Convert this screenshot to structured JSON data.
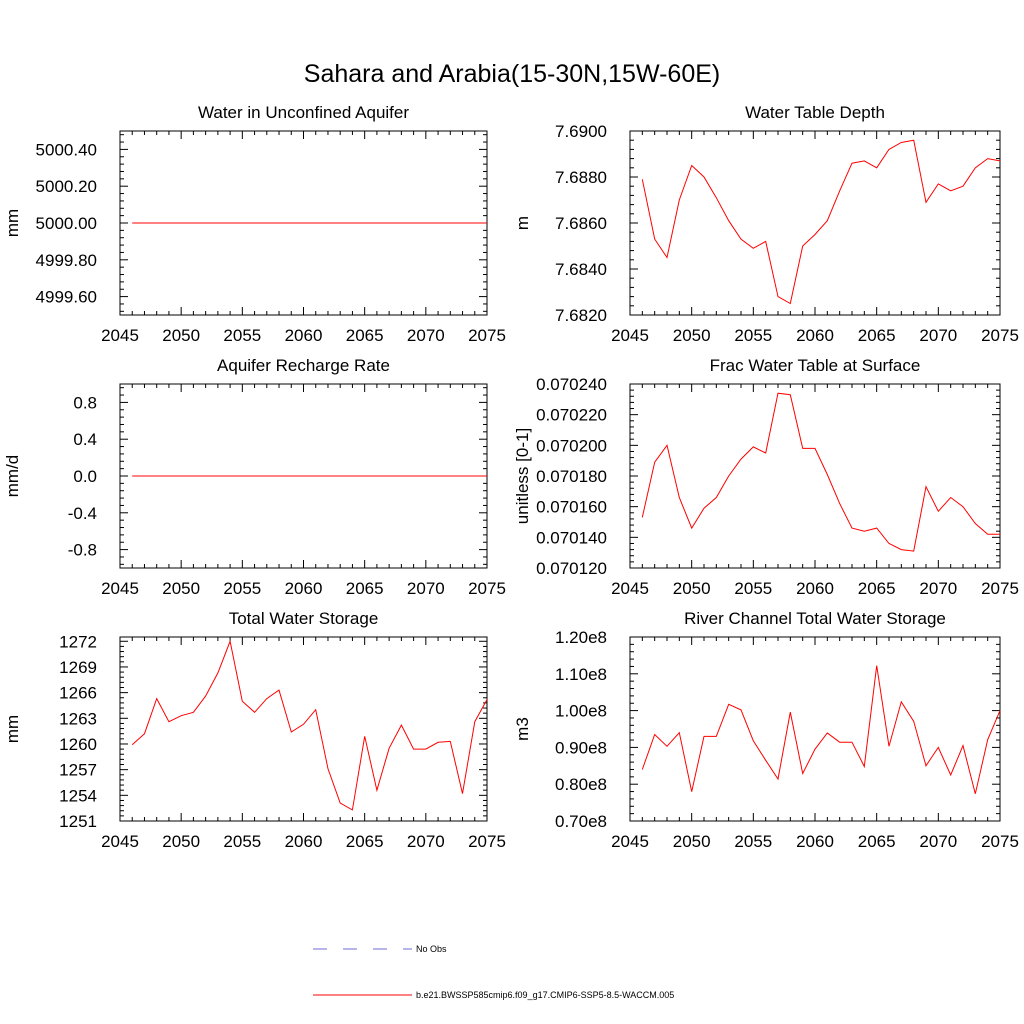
{
  "main_title": "Sahara and Arabia(15-30N,15W-60E)",
  "colors": {
    "series": "#ff0000",
    "obs": "#6b6bd6",
    "axis": "#000000"
  },
  "legend": {
    "obs_label": "No Obs",
    "model_label": "b.e21.BWSSP585cmip6.f09_g17.CMIP6-SSP5-8.5-WACCM.005"
  },
  "chart_data": [
    {
      "type": "line",
      "title": "Water in Unconfined Aquifer",
      "ylabel": "mm",
      "xlim": [
        2045,
        2075
      ],
      "ylim": [
        4999.5,
        5000.5
      ],
      "xticks": [
        2045,
        2050,
        2055,
        2060,
        2065,
        2070,
        2075
      ],
      "yticks": [
        4999.6,
        4999.8,
        5000.0,
        5000.2,
        5000.4
      ],
      "ytick_labels": [
        "4999.60",
        "4999.80",
        "5000.00",
        "5000.20",
        "5000.40"
      ],
      "x": [
        2046,
        2075
      ],
      "y": [
        5000.0,
        5000.0
      ]
    },
    {
      "type": "line",
      "title": "Water Table Depth",
      "ylabel": "m",
      "xlim": [
        2045,
        2075
      ],
      "ylim": [
        7.682,
        7.69
      ],
      "xticks": [
        2045,
        2050,
        2055,
        2060,
        2065,
        2070,
        2075
      ],
      "yticks": [
        7.682,
        7.684,
        7.686,
        7.688,
        7.69
      ],
      "ytick_labels": [
        "7.6820",
        "7.6840",
        "7.6860",
        "7.6880",
        "7.6900"
      ],
      "x": [
        2046,
        2047,
        2048,
        2049,
        2050,
        2051,
        2052,
        2053,
        2054,
        2055,
        2056,
        2057,
        2058,
        2059,
        2060,
        2061,
        2062,
        2063,
        2064,
        2065,
        2066,
        2067,
        2068,
        2069,
        2070,
        2071,
        2072,
        2073,
        2074,
        2075
      ],
      "y": [
        7.6879,
        7.6853,
        7.6845,
        7.687,
        7.6885,
        7.688,
        7.6871,
        7.6861,
        7.6853,
        7.6849,
        7.6852,
        7.6828,
        7.6825,
        7.685,
        7.6855,
        7.6861,
        7.6874,
        7.6886,
        7.6887,
        7.6884,
        7.6892,
        7.6895,
        7.6896,
        7.6869,
        7.6877,
        7.6874,
        7.6876,
        7.6884,
        7.6888,
        7.6887
      ]
    },
    {
      "type": "line",
      "title": "Aquifer Recharge Rate",
      "ylabel": "mm/d",
      "xlim": [
        2045,
        2075
      ],
      "ylim": [
        -1.0,
        1.0
      ],
      "xticks": [
        2045,
        2050,
        2055,
        2060,
        2065,
        2070,
        2075
      ],
      "yticks": [
        -0.8,
        -0.4,
        0.0,
        0.4,
        0.8
      ],
      "ytick_labels": [
        "-0.8",
        "-0.4",
        "0.0",
        "0.4",
        "0.8"
      ],
      "x": [
        2046,
        2075
      ],
      "y": [
        0.0,
        0.0
      ]
    },
    {
      "type": "line",
      "title": "Frac Water Table at Surface",
      "ylabel": "unitless [0-1]",
      "xlim": [
        2045,
        2075
      ],
      "ylim": [
        0.07012,
        0.07024
      ],
      "xticks": [
        2045,
        2050,
        2055,
        2060,
        2065,
        2070,
        2075
      ],
      "yticks": [
        0.07012,
        0.07014,
        0.07016,
        0.07018,
        0.0702,
        0.07022,
        0.07024
      ],
      "ytick_labels": [
        "0.070120",
        "0.070140",
        "0.070160",
        "0.070180",
        "0.070200",
        "0.070220",
        "0.070240"
      ],
      "x": [
        2046,
        2047,
        2048,
        2049,
        2050,
        2051,
        2052,
        2053,
        2054,
        2055,
        2056,
        2057,
        2058,
        2059,
        2060,
        2061,
        2062,
        2063,
        2064,
        2065,
        2066,
        2067,
        2068,
        2069,
        2070,
        2071,
        2072,
        2073,
        2074,
        2075
      ],
      "y": [
        0.070153,
        0.070189,
        0.0702,
        0.070166,
        0.070146,
        0.070159,
        0.070166,
        0.07018,
        0.070191,
        0.070199,
        0.070195,
        0.070234,
        0.070233,
        0.070198,
        0.070198,
        0.070181,
        0.070162,
        0.070146,
        0.070144,
        0.070146,
        0.070136,
        0.070132,
        0.070131,
        0.070173,
        0.070157,
        0.070166,
        0.07016,
        0.070149,
        0.070142,
        0.070142
      ]
    },
    {
      "type": "line",
      "title": "Total Water Storage",
      "ylabel": "mm",
      "xlim": [
        2045,
        2075
      ],
      "ylim": [
        1251,
        1272.5
      ],
      "xticks": [
        2045,
        2050,
        2055,
        2060,
        2065,
        2070,
        2075
      ],
      "yticks": [
        1251,
        1254,
        1257,
        1260,
        1263,
        1266,
        1269,
        1272
      ],
      "ytick_labels": [
        "1251",
        "1254",
        "1257",
        "1260",
        "1263",
        "1266",
        "1269",
        "1272"
      ],
      "x": [
        2046,
        2047,
        2048,
        2049,
        2050,
        2051,
        2052,
        2053,
        2054,
        2055,
        2056,
        2057,
        2058,
        2059,
        2060,
        2061,
        2062,
        2063,
        2064,
        2065,
        2066,
        2067,
        2068,
        2069,
        2070,
        2071,
        2072,
        2073,
        2074,
        2075
      ],
      "y": [
        1259.9,
        1261.2,
        1265.3,
        1262.6,
        1263.3,
        1263.7,
        1265.6,
        1268.3,
        1272.0,
        1265.0,
        1263.7,
        1265.3,
        1266.3,
        1261.4,
        1262.3,
        1264.0,
        1257.1,
        1253.1,
        1252.3,
        1260.9,
        1254.6,
        1259.5,
        1262.2,
        1259.4,
        1259.4,
        1260.2,
        1260.3,
        1254.2,
        1262.6,
        1265.2
      ]
    },
    {
      "type": "line",
      "title": "River Channel Total Water Storage",
      "ylabel": "m3",
      "xlim": [
        2045,
        2075
      ],
      "ylim": [
        70000000,
        120000000
      ],
      "xticks": [
        2045,
        2050,
        2055,
        2060,
        2065,
        2070,
        2075
      ],
      "yticks": [
        70000000,
        80000000,
        90000000,
        100000000,
        110000000,
        120000000
      ],
      "ytick_labels": [
        "0.70e8",
        "0.80e8",
        "0.90e8",
        "1.00e8",
        "1.10e8",
        "1.20e8"
      ],
      "x": [
        2046,
        2047,
        2048,
        2049,
        2050,
        2051,
        2052,
        2053,
        2054,
        2055,
        2056,
        2057,
        2058,
        2059,
        2060,
        2061,
        2062,
        2063,
        2064,
        2065,
        2066,
        2067,
        2068,
        2069,
        2070,
        2071,
        2072,
        2073,
        2074,
        2075
      ],
      "y": [
        84000000,
        93500000,
        90300000,
        94000000,
        78000000,
        93000000,
        93000000,
        101700000,
        100200000,
        91800000,
        86500000,
        81400000,
        99600000,
        82900000,
        89500000,
        93900000,
        91400000,
        91400000,
        84800000,
        112200000,
        90300000,
        102400000,
        97100000,
        85000000,
        90000000,
        82500000,
        90500000,
        77400000,
        92100000,
        100000000
      ]
    }
  ]
}
